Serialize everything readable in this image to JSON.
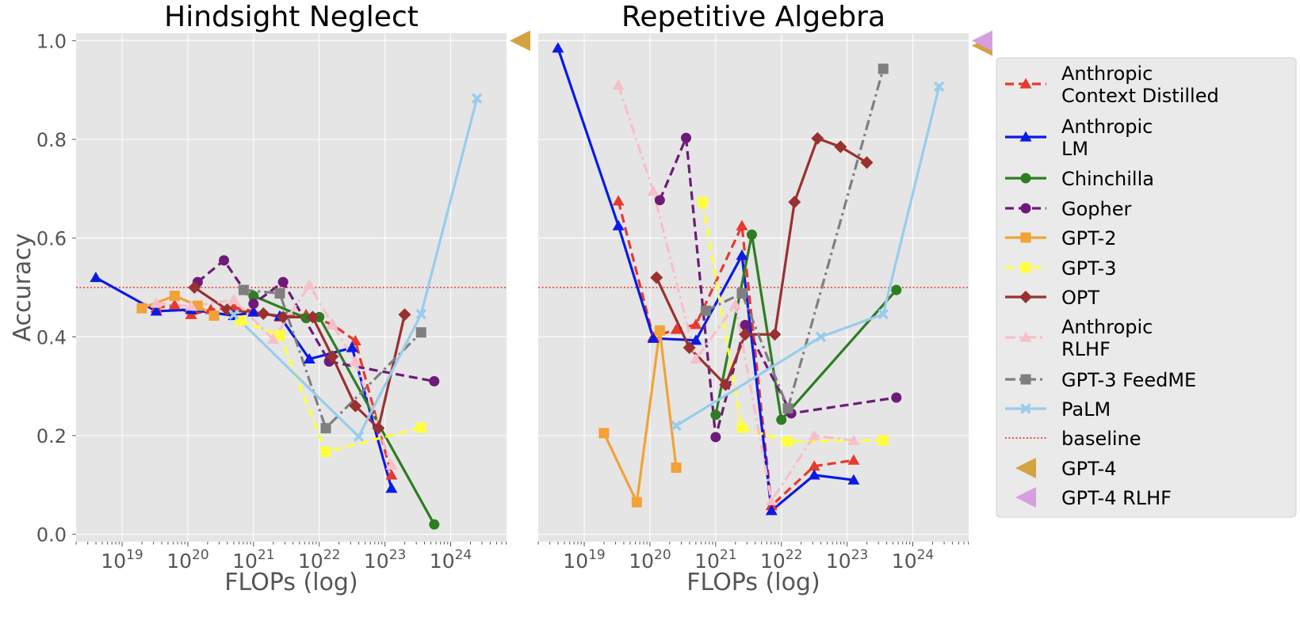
{
  "colors": {
    "Anthropic Context Distilled": "#e8392e",
    "Anthropic LM": "#0a1ae6",
    "Chinchilla": "#2e7d22",
    "Gopher": "#6e1a7a",
    "GPT-2": "#f2a236",
    "GPT-3": "#ffff40",
    "OPT": "#9b3030",
    "Anthropic RLHF": "#f7bfca",
    "GPT-3 FeedME": "#7f7f7f",
    "PaLM": "#99ccec",
    "baseline": "#e8392e",
    "GPT-4": "#d4a341",
    "GPT-4 RLHF": "#d5a0dd",
    "panel_bg": "#e5e5e5",
    "grid": "#ffffff",
    "text": "#555555"
  },
  "chart_data": [
    {
      "type": "line",
      "title": "Hindsight Neglect",
      "xlabel": "FLOPs (log)",
      "ylabel": "Accuracy",
      "x_scale": "log10",
      "xlim_log10": [
        18.3,
        24.85
      ],
      "ylim": [
        -0.015,
        1.015
      ],
      "x_ticks": [
        {
          "base": "10",
          "exp": "19",
          "log": 19
        },
        {
          "base": "10",
          "exp": "20",
          "log": 20
        },
        {
          "base": "10",
          "exp": "21",
          "log": 21
        },
        {
          "base": "10",
          "exp": "22",
          "log": 22
        },
        {
          "base": "10",
          "exp": "23",
          "log": 23
        },
        {
          "base": "10",
          "exp": "24",
          "log": 24
        }
      ],
      "y_ticks": [
        "0.0",
        "0.2",
        "0.4",
        "0.6",
        "0.8",
        "1.0"
      ],
      "baseline": 0.5,
      "series": [
        {
          "name": "Anthropic Context Distilled",
          "marker": "triangle",
          "dash": "dashed",
          "points": [
            [
              19.52,
              0.458
            ],
            [
              19.8,
              0.465
            ],
            [
              20.05,
              0.445
            ],
            [
              20.35,
              0.455
            ],
            [
              20.7,
              0.46
            ],
            [
              21.0,
              0.452
            ],
            [
              21.4,
              0.44
            ],
            [
              21.8,
              0.445
            ],
            [
              22.2,
              0.425
            ],
            [
              22.55,
              0.392
            ],
            [
              23.1,
              0.12
            ]
          ]
        },
        {
          "name": "Anthropic LM",
          "marker": "triangle",
          "dash": "solid",
          "points": [
            [
              18.6,
              0.52
            ],
            [
              19.52,
              0.452
            ],
            [
              20.05,
              0.455
            ],
            [
              20.7,
              0.443
            ],
            [
              21.0,
              0.45
            ],
            [
              21.4,
              0.442
            ],
            [
              21.85,
              0.355
            ],
            [
              22.5,
              0.378
            ],
            [
              23.1,
              0.093
            ]
          ]
        },
        {
          "name": "Chinchilla",
          "marker": "circle",
          "dash": "solid",
          "points": [
            [
              21.0,
              0.483
            ],
            [
              21.8,
              0.438
            ],
            [
              22.0,
              0.44
            ],
            [
              23.75,
              0.02
            ]
          ]
        },
        {
          "name": "Gopher",
          "marker": "circle",
          "dash": "dashed",
          "points": [
            [
              20.15,
              0.511
            ],
            [
              20.55,
              0.555
            ],
            [
              21.0,
              0.467
            ],
            [
              21.45,
              0.511
            ],
            [
              22.15,
              0.35
            ],
            [
              23.75,
              0.31
            ]
          ]
        },
        {
          "name": "GPT-2",
          "marker": "square",
          "dash": "solid",
          "points": [
            [
              19.3,
              0.458
            ],
            [
              19.8,
              0.483
            ],
            [
              20.15,
              0.463
            ],
            [
              20.4,
              0.443
            ]
          ]
        },
        {
          "name": "GPT-3",
          "marker": "square",
          "dash": "dashed",
          "points": [
            [
              20.8,
              0.433
            ],
            [
              21.4,
              0.403
            ],
            [
              22.1,
              0.167
            ],
            [
              23.55,
              0.216
            ]
          ]
        },
        {
          "name": "OPT",
          "marker": "diamond",
          "dash": "solid",
          "points": [
            [
              20.1,
              0.5
            ],
            [
              20.6,
              0.455
            ],
            [
              21.15,
              0.447
            ],
            [
              21.45,
              0.44
            ],
            [
              21.9,
              0.44
            ],
            [
              22.2,
              0.36
            ],
            [
              22.55,
              0.26
            ],
            [
              22.9,
              0.215
            ],
            [
              23.3,
              0.445
            ]
          ]
        },
        {
          "name": "Anthropic RLHF",
          "marker": "triangle",
          "dash": "dashdot",
          "points": [
            [
              19.52,
              0.468
            ],
            [
              20.05,
              0.462
            ],
            [
              20.7,
              0.475
            ],
            [
              21.3,
              0.395
            ],
            [
              21.85,
              0.505
            ],
            [
              22.2,
              0.425
            ],
            [
              22.55,
              0.35
            ],
            [
              23.1,
              0.14
            ]
          ]
        },
        {
          "name": "GPT-3 FeedME",
          "marker": "square",
          "dash": "dashdot",
          "points": [
            [
              20.85,
              0.495
            ],
            [
              21.4,
              0.488
            ],
            [
              22.1,
              0.215
            ],
            [
              23.55,
              0.409
            ]
          ]
        },
        {
          "name": "PaLM",
          "marker": "x",
          "dash": "solid",
          "points": [
            [
              20.7,
              0.445
            ],
            [
              22.6,
              0.198
            ],
            [
              23.55,
              0.446
            ],
            [
              24.4,
              0.883
            ]
          ]
        }
      ],
      "markers_outside": [
        {
          "name": "GPT-4",
          "value": 1.0
        }
      ]
    },
    {
      "type": "line",
      "title": "Repetitive Algebra",
      "xlabel": "FLOPs (log)",
      "ylabel": "",
      "x_scale": "log10",
      "xlim_log10": [
        18.3,
        24.85
      ],
      "ylim": [
        -0.015,
        1.015
      ],
      "x_ticks": [
        {
          "base": "10",
          "exp": "19",
          "log": 19
        },
        {
          "base": "10",
          "exp": "20",
          "log": 20
        },
        {
          "base": "10",
          "exp": "21",
          "log": 21
        },
        {
          "base": "10",
          "exp": "22",
          "log": 22
        },
        {
          "base": "10",
          "exp": "23",
          "log": 23
        },
        {
          "base": "10",
          "exp": "24",
          "log": 24
        }
      ],
      "y_ticks": [],
      "baseline": 0.5,
      "series": [
        {
          "name": "Anthropic Context Distilled",
          "marker": "triangle",
          "dash": "dashed",
          "points": [
            [
              19.52,
              0.675
            ],
            [
              20.05,
              0.4
            ],
            [
              20.4,
              0.415
            ],
            [
              20.7,
              0.425
            ],
            [
              21.4,
              0.625
            ],
            [
              21.85,
              0.058
            ],
            [
              22.5,
              0.138
            ],
            [
              23.1,
              0.15
            ]
          ]
        },
        {
          "name": "Anthropic LM",
          "marker": "triangle",
          "dash": "solid",
          "points": [
            [
              18.6,
              0.985
            ],
            [
              19.52,
              0.625
            ],
            [
              20.05,
              0.397
            ],
            [
              20.7,
              0.393
            ],
            [
              21.4,
              0.565
            ],
            [
              21.85,
              0.048
            ],
            [
              22.5,
              0.12
            ],
            [
              23.1,
              0.11
            ]
          ]
        },
        {
          "name": "Chinchilla",
          "marker": "circle",
          "dash": "solid",
          "points": [
            [
              21.0,
              0.242
            ],
            [
              21.55,
              0.607
            ],
            [
              22.0,
              0.232
            ],
            [
              23.75,
              0.495
            ]
          ]
        },
        {
          "name": "Gopher",
          "marker": "circle",
          "dash": "dashed",
          "points": [
            [
              20.15,
              0.677
            ],
            [
              20.55,
              0.803
            ],
            [
              21.0,
              0.197
            ],
            [
              21.45,
              0.424
            ],
            [
              22.15,
              0.245
            ],
            [
              23.75,
              0.277
            ]
          ]
        },
        {
          "name": "GPT-2",
          "marker": "square",
          "dash": "solid",
          "points": [
            [
              19.3,
              0.205
            ],
            [
              19.8,
              0.065
            ],
            [
              20.15,
              0.413
            ],
            [
              20.4,
              0.135
            ]
          ]
        },
        {
          "name": "GPT-3",
          "marker": "square",
          "dash": "dashed",
          "points": [
            [
              20.8,
              0.673
            ],
            [
              21.4,
              0.216
            ],
            [
              22.1,
              0.188
            ],
            [
              23.55,
              0.19
            ]
          ]
        },
        {
          "name": "OPT",
          "marker": "diamond",
          "dash": "solid",
          "points": [
            [
              20.1,
              0.52
            ],
            [
              20.6,
              0.378
            ],
            [
              21.15,
              0.303
            ],
            [
              21.45,
              0.405
            ],
            [
              21.9,
              0.405
            ],
            [
              22.2,
              0.673
            ],
            [
              22.55,
              0.802
            ],
            [
              22.9,
              0.785
            ],
            [
              23.3,
              0.753
            ]
          ]
        },
        {
          "name": "Anthropic RLHF",
          "marker": "triangle",
          "dash": "dashdot",
          "points": [
            [
              19.52,
              0.91
            ],
            [
              20.05,
              0.695
            ],
            [
              20.7,
              0.355
            ],
            [
              21.3,
              0.465
            ],
            [
              21.85,
              0.068
            ],
            [
              22.5,
              0.2
            ],
            [
              23.1,
              0.19
            ]
          ]
        },
        {
          "name": "GPT-3 FeedME",
          "marker": "square",
          "dash": "dashdot",
          "points": [
            [
              20.85,
              0.453
            ],
            [
              21.4,
              0.488
            ],
            [
              22.1,
              0.255
            ],
            [
              23.55,
              0.943
            ]
          ]
        },
        {
          "name": "PaLM",
          "marker": "x",
          "dash": "solid",
          "points": [
            [
              20.4,
              0.22
            ],
            [
              22.6,
              0.4
            ],
            [
              23.55,
              0.446
            ],
            [
              24.4,
              0.907
            ]
          ]
        }
      ],
      "markers_outside": [
        {
          "name": "GPT-4",
          "value": 0.99
        },
        {
          "name": "GPT-4 RLHF",
          "value": 1.0
        }
      ]
    }
  ],
  "legend": [
    {
      "name": "Anthropic Context Distilled",
      "lines": [
        "Anthropic",
        "Context Distilled"
      ],
      "marker": "triangle",
      "dash": "dashed"
    },
    {
      "name": "Anthropic LM",
      "lines": [
        "Anthropic",
        "LM"
      ],
      "marker": "triangle",
      "dash": "solid"
    },
    {
      "name": "Chinchilla",
      "lines": [
        "Chinchilla"
      ],
      "marker": "circle",
      "dash": "solid"
    },
    {
      "name": "Gopher",
      "lines": [
        "Gopher"
      ],
      "marker": "circle",
      "dash": "dashed"
    },
    {
      "name": "GPT-2",
      "lines": [
        "GPT-2"
      ],
      "marker": "square",
      "dash": "solid"
    },
    {
      "name": "GPT-3",
      "lines": [
        "GPT-3"
      ],
      "marker": "square",
      "dash": "dashed"
    },
    {
      "name": "OPT",
      "lines": [
        "OPT"
      ],
      "marker": "diamond",
      "dash": "solid"
    },
    {
      "name": "Anthropic RLHF",
      "lines": [
        "Anthropic",
        "RLHF"
      ],
      "marker": "triangle",
      "dash": "dashdot"
    },
    {
      "name": "GPT-3 FeedME",
      "lines": [
        "GPT-3 FeedME"
      ],
      "marker": "square",
      "dash": "dashdot"
    },
    {
      "name": "PaLM",
      "lines": [
        "PaLM"
      ],
      "marker": "x",
      "dash": "solid"
    },
    {
      "name": "baseline",
      "lines": [
        "baseline"
      ],
      "marker": "none",
      "dash": "dotted"
    },
    {
      "name": "GPT-4",
      "lines": [
        "GPT-4"
      ],
      "marker": "left-triangle",
      "dash": "none"
    },
    {
      "name": "GPT-4 RLHF",
      "lines": [
        "GPT-4 RLHF"
      ],
      "marker": "left-triangle",
      "dash": "none"
    }
  ]
}
